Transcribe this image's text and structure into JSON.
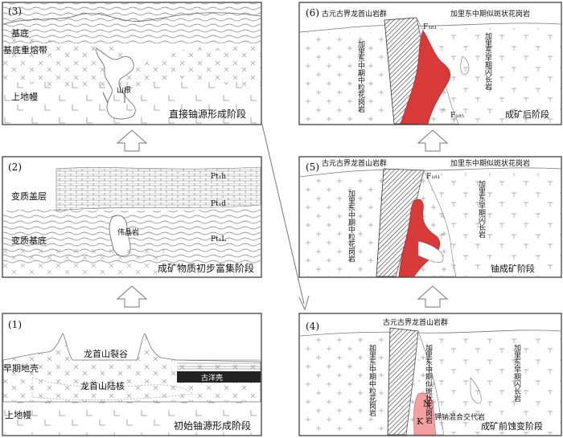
{
  "panels": {
    "p1": {
      "num": "(1)",
      "stage": "初始铀源形成阶段",
      "rift": "龙首山裂谷",
      "core": "龙首山陆核",
      "crust": "早期地壳",
      "ocean": "古洋壳",
      "mantle": "上地幔"
    },
    "p2": {
      "num": "(2)",
      "stage": "成矿物质初步富集阶段",
      "cover": "变质盖层",
      "base": "变质基底",
      "pegmatite": "伟晶岩",
      "pth": "Pt₁h",
      "ptd": "Pt₁d",
      "ptl": "Pt₁L"
    },
    "p3": {
      "num": "(3)",
      "stage": "直接铀源形成阶段",
      "base": "基底",
      "remelt": "基底重熔带",
      "mantle": "上地幔",
      "root": "山根"
    },
    "p4": {
      "num": "(4)",
      "stage": "成矿前蚀变阶段",
      "group": "古元古界龙首山岩群",
      "granite_fine": "加里东中期中粒花岗岩",
      "granite_porph": "加里东中期似斑状花岗岩",
      "diorite": "加里东早期闪长岩",
      "mixed": "钾钠混合交代岩",
      "n": "N",
      "k": "K"
    },
    "p5": {
      "num": "(5)",
      "stage": "铀成矿阶段",
      "group": "古元古界龙首山岩群",
      "granite_fine": "加里东中期中粒花岗岩",
      "granite_porph": "加里东中期似斑状花岗岩",
      "diorite": "加里东早期闪长岩",
      "f": "F₁₈₁"
    },
    "p6": {
      "num": "(6)",
      "stage": "成矿后阶段",
      "group": "古元古界龙首山岩群",
      "granite_fine": "加里东中期中粒花岗岩",
      "granite_porph": "加里东中期似斑状花岗岩",
      "diorite": "加里东早期闪长岩",
      "f": "F₁₈₁",
      "f2": "F₁₈₅"
    }
  },
  "colors": {
    "ore_red": "#d83a3a",
    "pink": "#f2a0a0",
    "ocean_black": "#222222",
    "arrow": "#777777"
  }
}
